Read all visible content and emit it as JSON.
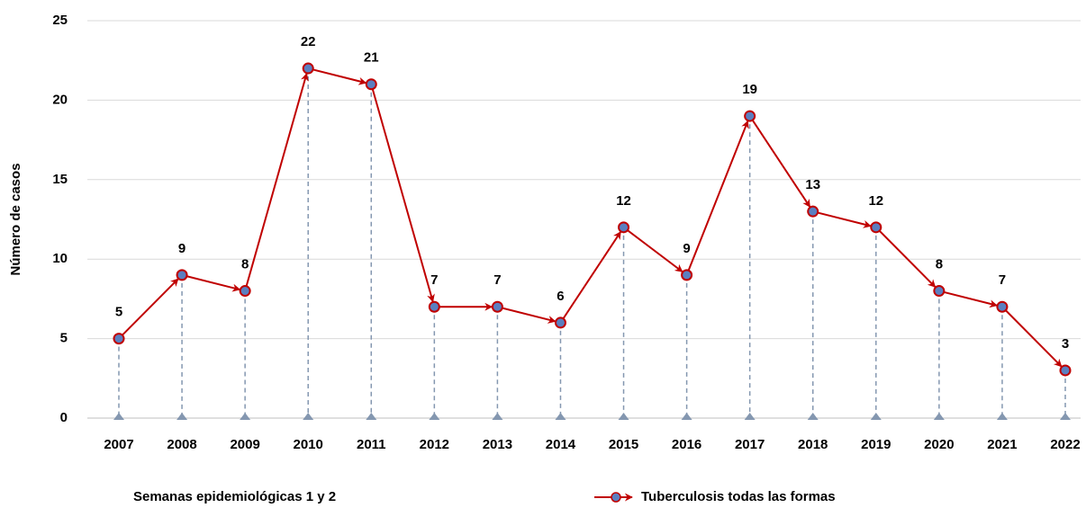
{
  "chart_data": {
    "type": "line",
    "x_label": "Semanas epidemiológicas 1 y 2",
    "y_label": "Número de casos",
    "categories": [
      "2007",
      "2008",
      "2009",
      "2010",
      "2011",
      "2012",
      "2013",
      "2014",
      "2015",
      "2016",
      "2017",
      "2018",
      "2019",
      "2020",
      "2021",
      "2022"
    ],
    "series": [
      {
        "name": "Tuberculosis todas las formas",
        "color": "#c00000",
        "marker_color": "#5b7fc0",
        "values": [
          5,
          9,
          8,
          22,
          21,
          7,
          7,
          6,
          12,
          9,
          19,
          13,
          12,
          8,
          7,
          3
        ]
      }
    ],
    "ylim": [
      0,
      25
    ],
    "yticks": [
      0,
      5,
      10,
      15,
      20,
      25
    ],
    "grid": true,
    "data_labels": true,
    "legend": "bottom-right"
  }
}
